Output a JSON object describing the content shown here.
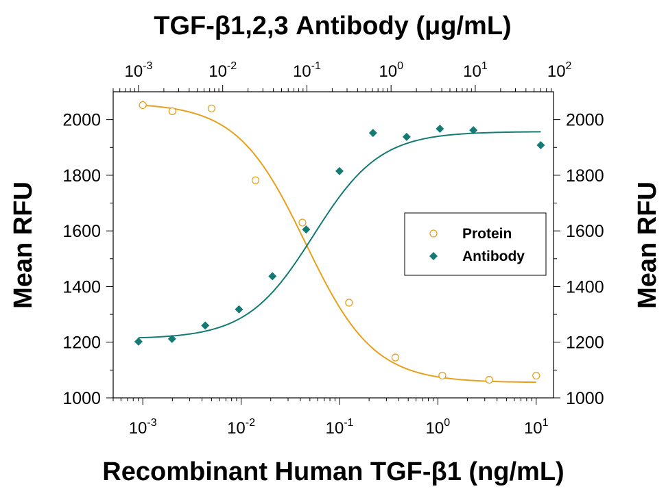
{
  "chart_data": {
    "type": "scatter",
    "title": "TGF-β1,2,3 Antibody (μg/mL)",
    "xlabel": "Recombinant Human TGF-β1 (ng/mL)",
    "ylabel": "Mean RFU",
    "ylabel_right": "Mean RFU",
    "x_scale": "log",
    "x_top_scale": "log",
    "xlim": [
      0.0005,
      15
    ],
    "x_top_lim": [
      0.0005,
      85
    ],
    "ylim": [
      1000,
      2100
    ],
    "x_ticks": [
      {
        "value": 0.001,
        "base": "10",
        "exp": "-3"
      },
      {
        "value": 0.01,
        "base": "10",
        "exp": "-2"
      },
      {
        "value": 0.1,
        "base": "10",
        "exp": "-1"
      },
      {
        "value": 1,
        "base": "10",
        "exp": "0"
      },
      {
        "value": 10,
        "base": "10",
        "exp": "1"
      }
    ],
    "x_top_ticks": [
      {
        "value": 0.001,
        "base": "10",
        "exp": "-3"
      },
      {
        "value": 0.01,
        "base": "10",
        "exp": "-2"
      },
      {
        "value": 0.1,
        "base": "10",
        "exp": "-1"
      },
      {
        "value": 1,
        "base": "10",
        "exp": "0"
      },
      {
        "value": 10,
        "base": "10",
        "exp": "1"
      },
      {
        "value": 100,
        "base": "10",
        "exp": "2"
      }
    ],
    "y_ticks": [
      "1000",
      "1200",
      "1400",
      "1600",
      "1800",
      "2000"
    ],
    "grid": false,
    "legend_position": "center-right",
    "series": [
      {
        "name": "Protein",
        "axis": "bottom",
        "marker": "open-circle",
        "color": "#E8A01C",
        "x": [
          0.001,
          0.002,
          0.005,
          0.014,
          0.042,
          0.125,
          0.37,
          1.11,
          3.33,
          10
        ],
        "y": [
          2052,
          2030,
          2040,
          1782,
          1630,
          1342,
          1145,
          1080,
          1065,
          1080
        ],
        "fit": {
          "model": "4PL",
          "top": 2060,
          "bottom": 1055,
          "ec50": 0.045,
          "hill": 1.25,
          "direction": "decreasing"
        }
      },
      {
        "name": "Antibody",
        "axis": "top",
        "marker": "filled-diamond",
        "color": "#137B73",
        "x": [
          0.001,
          0.0025,
          0.0062,
          0.0156,
          0.039,
          0.098,
          0.244,
          0.61,
          1.53,
          3.8,
          9.5,
          60
        ],
        "y": [
          1202,
          1212,
          1260,
          1318,
          1437,
          1605,
          1815,
          1952,
          1938,
          1967,
          1962,
          1908
        ],
        "fit": {
          "model": "4PL",
          "top": 1957,
          "bottom": 1212,
          "ec50": 0.12,
          "hill": 1.1,
          "direction": "increasing"
        }
      }
    ]
  }
}
